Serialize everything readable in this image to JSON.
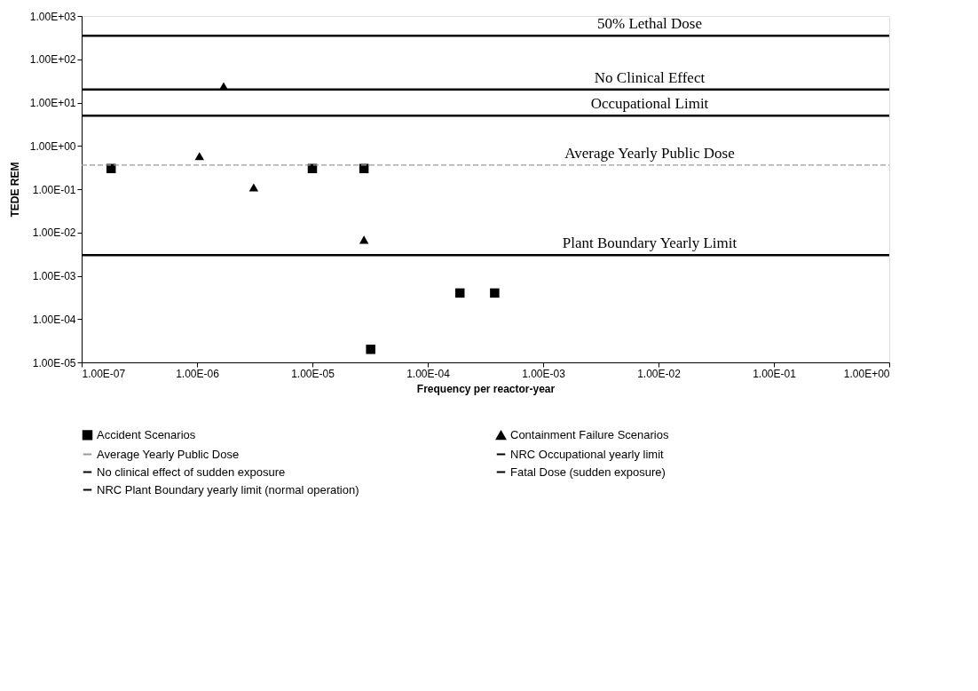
{
  "chart_data": {
    "type": "scatter",
    "xlabel": "Frequency per reactor-year",
    "ylabel": "TEDE REM",
    "log": "xy",
    "xlim": [
      1e-07,
      1
    ],
    "ylim": [
      1e-05,
      1000
    ],
    "xticks": [
      {
        "value": 1e-07,
        "label": "1.00E-07"
      },
      {
        "value": 1e-06,
        "label": "1.00E-06"
      },
      {
        "value": 1e-05,
        "label": "1.00E-05"
      },
      {
        "value": 0.0001,
        "label": "1.00E-04"
      },
      {
        "value": 0.001,
        "label": "1.00E-03"
      },
      {
        "value": 0.01,
        "label": "1.00E-02"
      },
      {
        "value": 0.1,
        "label": "1.00E-01"
      },
      {
        "value": 1,
        "label": "1.00E+00"
      }
    ],
    "yticks": [
      {
        "value": 1e-05,
        "label": "1.00E-05"
      },
      {
        "value": 0.0001,
        "label": "1.00E-04"
      },
      {
        "value": 0.001,
        "label": "1.00E-03"
      },
      {
        "value": 0.01,
        "label": "1.00E-02"
      },
      {
        "value": 0.1,
        "label": "1.00E-01"
      },
      {
        "value": 1,
        "label": "1.00E+00"
      },
      {
        "value": 10,
        "label": "1.00E+01"
      },
      {
        "value": 100,
        "label": "1.00E+02"
      },
      {
        "value": 1000,
        "label": "1.00E+03"
      }
    ],
    "grid": false,
    "legend": "bottom",
    "series": [
      {
        "name": "Accident Scenarios",
        "type": "scatter",
        "marker": "square",
        "color": "#000000",
        "x": [
          1.8e-07,
          1e-05,
          2.8e-05,
          0.00019,
          0.00038,
          3.2e-05
        ],
        "values": [
          0.3,
          0.3,
          0.3,
          0.0004,
          0.0004,
          2e-05
        ]
      },
      {
        "name": "Containment Failure Scenarios",
        "type": "scatter",
        "marker": "triangle",
        "color": "#000000",
        "x": [
          1.7e-06,
          1.05e-06,
          3.1e-06,
          2.8e-05
        ],
        "values": [
          24,
          0.58,
          0.11,
          0.0068
        ]
      },
      {
        "name": "Average Yearly Public Dose",
        "type": "line",
        "line_style": "dashed",
        "color": "#9a9a9a",
        "x": [
          1e-07,
          1
        ],
        "values": [
          0.36,
          0.36
        ]
      },
      {
        "name": "NRC Occupational yearly limit",
        "type": "line",
        "line_style": "solid",
        "color": "#000000",
        "x": [
          1e-07,
          1
        ],
        "values": [
          5,
          5
        ]
      },
      {
        "name": "No clinical effect of sudden exposure",
        "type": "line",
        "line_style": "solid",
        "color": "#000000",
        "x": [
          1e-07,
          1
        ],
        "values": [
          20,
          20
        ]
      },
      {
        "name": "Fatal Dose (sudden exposure)",
        "type": "line",
        "line_style": "solid",
        "color": "#000000",
        "x": [
          1e-07,
          1
        ],
        "values": [
          350,
          350
        ]
      },
      {
        "name": "NRC Plant Boundary yearly limit (normal operation)",
        "type": "line",
        "line_style": "solid",
        "color": "#000000",
        "x": [
          1e-07,
          1
        ],
        "values": [
          0.003,
          0.003
        ]
      }
    ],
    "annotations": [
      {
        "text": "50% Lethal Dose",
        "y": 350
      },
      {
        "text": "No Clinical Effect",
        "y": 20
      },
      {
        "text": "Occupational Limit",
        "y": 5
      },
      {
        "text": "Average Yearly Public Dose",
        "y": 0.36
      },
      {
        "text": "Plant Boundary Yearly Limit",
        "y": 0.003
      }
    ]
  }
}
